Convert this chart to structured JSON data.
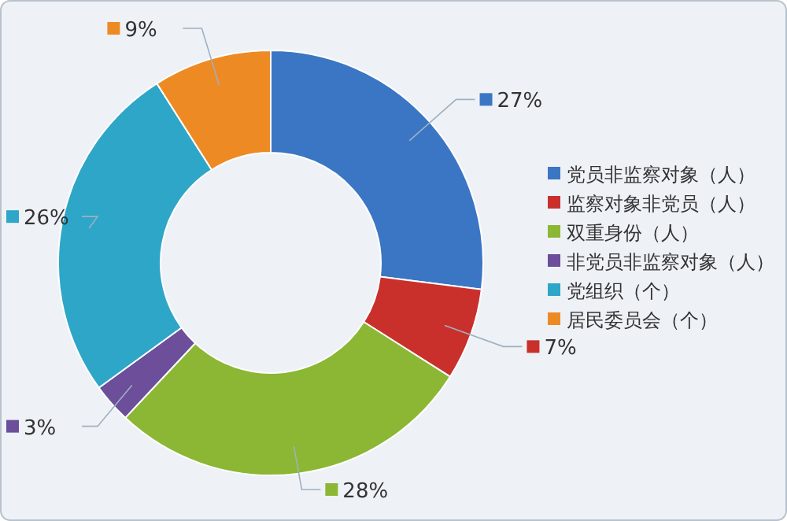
{
  "chart_data": {
    "type": "donut",
    "categories": [
      "党员非监察对象（人）",
      "监察对象非党员（人）",
      "双重身份（人）",
      "非党员非监察对象（人）",
      "党组织（个）",
      "居民委员会（个）"
    ],
    "values": [
      27,
      7,
      28,
      3,
      26,
      9
    ],
    "colors": [
      "#3b76c4",
      "#c9302c",
      "#8bb735",
      "#6c4e9b",
      "#2ea6c8",
      "#ee8a23"
    ],
    "value_labels": [
      "27%",
      "7%",
      "28%",
      "3%",
      "26%",
      "9%"
    ],
    "legend": "right"
  }
}
